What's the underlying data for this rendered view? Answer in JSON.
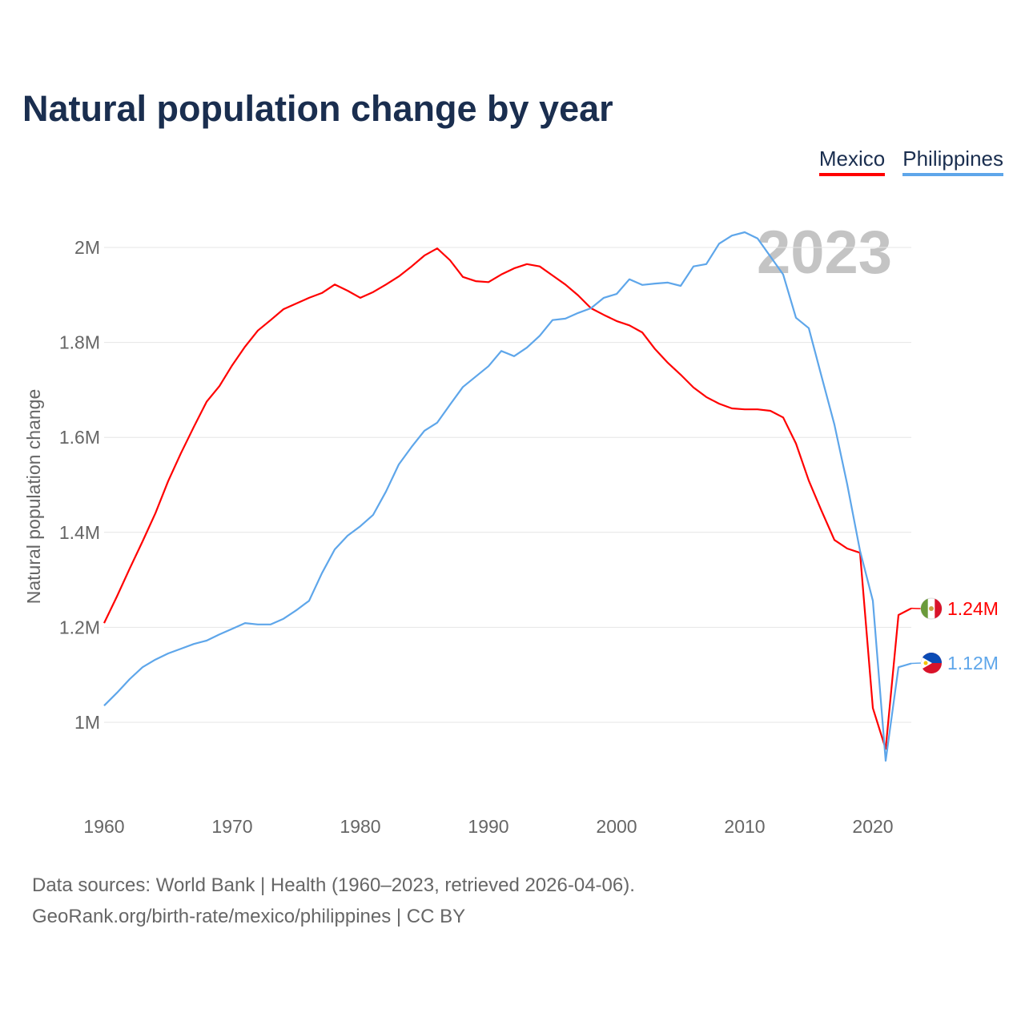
{
  "title": "Natural population change by year",
  "legend": [
    "Mexico",
    "Philippines"
  ],
  "year_label": "2023",
  "source_lines": [
    "Data sources: World Bank | Health (1960–2023, retrieved 2026-04-06).",
    "GeoRank.org/birth-rate/mexico/philippines | CC BY"
  ],
  "chart_data": {
    "type": "line",
    "title": "Natural population change by year",
    "xlabel": "",
    "ylabel": "Natural population change",
    "xlim": [
      1960,
      2023
    ],
    "ylim": [
      0.85,
      2.1
    ],
    "x_ticks": [
      1960,
      1970,
      1980,
      1990,
      2000,
      2010,
      2020
    ],
    "y_ticks": [
      1,
      1.2,
      1.4,
      1.6,
      1.8,
      2
    ],
    "y_tick_labels": [
      "1M",
      "1.2M",
      "1.4M",
      "1.6M",
      "1.8M",
      "2M"
    ],
    "grid": true,
    "legend_position": "top-right",
    "start_year": 1960,
    "series": [
      {
        "name": "Mexico",
        "color": "#ff0000",
        "end_label": "1.24M",
        "values": [
          1.209,
          1.265,
          1.324,
          1.381,
          1.44,
          1.508,
          1.567,
          1.622,
          1.675,
          1.708,
          1.752,
          1.791,
          1.825,
          1.847,
          1.87,
          1.882,
          1.894,
          1.904,
          1.922,
          1.909,
          1.894,
          1.906,
          1.922,
          1.939,
          1.96,
          1.983,
          1.998,
          1.973,
          1.938,
          1.929,
          1.927,
          1.943,
          1.956,
          1.965,
          1.96,
          1.941,
          1.922,
          1.899,
          1.872,
          1.858,
          1.845,
          1.836,
          1.821,
          1.786,
          1.757,
          1.732,
          1.705,
          1.685,
          1.671,
          1.661,
          1.659,
          1.659,
          1.656,
          1.642,
          1.587,
          1.509,
          1.445,
          1.384,
          1.366,
          1.357,
          1.03,
          0.944,
          1.226,
          1.24
        ]
      },
      {
        "name": "Philippines",
        "color": "#5ea6ea",
        "end_label": "1.12M",
        "values": [
          1.035,
          1.062,
          1.091,
          1.116,
          1.132,
          1.145,
          1.155,
          1.165,
          1.172,
          1.185,
          1.197,
          1.209,
          1.206,
          1.206,
          1.218,
          1.236,
          1.256,
          1.314,
          1.364,
          1.393,
          1.413,
          1.437,
          1.486,
          1.543,
          1.58,
          1.614,
          1.631,
          1.669,
          1.706,
          1.728,
          1.75,
          1.782,
          1.771,
          1.789,
          1.814,
          1.847,
          1.85,
          1.862,
          1.872,
          1.894,
          1.902,
          1.933,
          1.921,
          1.924,
          1.926,
          1.919,
          1.96,
          1.965,
          2.008,
          2.025,
          2.032,
          2.019,
          1.981,
          1.943,
          1.852,
          1.83,
          1.728,
          1.627,
          1.501,
          1.361,
          1.256,
          0.919,
          1.116,
          1.124
        ]
      }
    ]
  }
}
